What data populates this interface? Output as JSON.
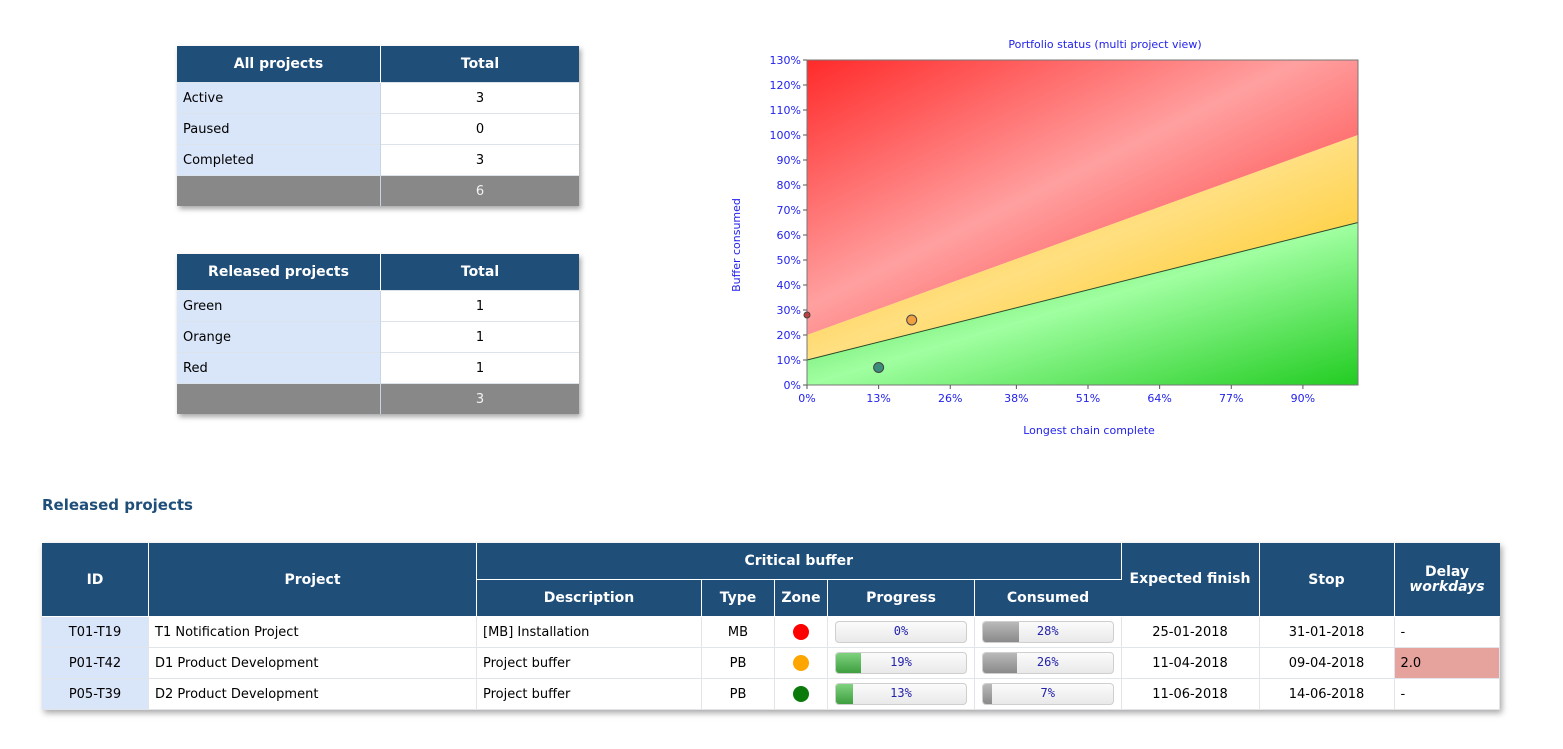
{
  "all_projects": {
    "header": [
      "All projects",
      "Total"
    ],
    "rows": [
      {
        "label": "Active",
        "value": "3"
      },
      {
        "label": "Paused",
        "value": "0"
      },
      {
        "label": "Completed",
        "value": "3"
      }
    ],
    "total": "6"
  },
  "released_summary": {
    "header": [
      "Released projects",
      "Total"
    ],
    "rows": [
      {
        "label": "Green",
        "value": "1"
      },
      {
        "label": "Orange",
        "value": "1"
      },
      {
        "label": "Red",
        "value": "1"
      }
    ],
    "total": "3"
  },
  "chart": {
    "title": "Portfolio status (multi project view)",
    "xlabel": "Longest chain complete",
    "ylabel": "Buffer consumed",
    "x_ticks": [
      "0%",
      "13%",
      "26%",
      "38%",
      "51%",
      "64%",
      "77%",
      "90%"
    ],
    "y_ticks": [
      "0%",
      "10%",
      "20%",
      "30%",
      "40%",
      "50%",
      "60%",
      "70%",
      "80%",
      "90%",
      "100%",
      "110%",
      "120%",
      "130%"
    ],
    "colors": {
      "red": "#ff2020",
      "orange": "#ffc020",
      "green": "#22c022"
    }
  },
  "chart_data": {
    "type": "scatter",
    "title": "Portfolio status (multi project view)",
    "xlabel": "Longest chain complete",
    "ylabel": "Buffer consumed",
    "xlim": [
      0,
      100
    ],
    "ylim": [
      0,
      130
    ],
    "zone_lines": [
      {
        "name": "green-orange",
        "x": [
          0,
          100
        ],
        "y": [
          10,
          65
        ]
      },
      {
        "name": "orange-red",
        "x": [
          0,
          100
        ],
        "y": [
          20,
          100
        ]
      }
    ],
    "points": [
      {
        "x": 0,
        "y": 28,
        "zone": "red"
      },
      {
        "x": 19,
        "y": 26,
        "zone": "orange"
      },
      {
        "x": 13,
        "y": 7,
        "zone": "green"
      }
    ]
  },
  "released": {
    "title": "Released projects",
    "headers": {
      "id": "ID",
      "project": "Project",
      "critical_buffer": "Critical buffer",
      "description": "Description",
      "type": "Type",
      "zone": "Zone",
      "progress": "Progress",
      "consumed": "Consumed",
      "expected": "Expected finish",
      "stop": "Stop",
      "delay": "Delay",
      "delay_unit": "workdays"
    },
    "rows": [
      {
        "id": "T01-T19",
        "project": "T1 Notification Project",
        "description": "[MB] Installation",
        "type": "MB",
        "zone_color": "#ff0000",
        "progress": "0%",
        "progress_value": 0,
        "consumed": "28%",
        "consumed_value": 28,
        "expected": "25-01-2018",
        "stop": "31-01-2018",
        "delay": "-"
      },
      {
        "id": "P01-T42",
        "project": "D1 Product Development",
        "description": "Project buffer",
        "type": "PB",
        "zone_color": "#ffa500",
        "progress": "19%",
        "progress_value": 19,
        "consumed": "26%",
        "consumed_value": 26,
        "expected": "11-04-2018",
        "stop": "09-04-2018",
        "delay": "2.0"
      },
      {
        "id": "P05-T39",
        "project": "D2 Product Development",
        "description": "Project buffer",
        "type": "PB",
        "zone_color": "#0a7a0a",
        "progress": "13%",
        "progress_value": 13,
        "consumed": "7%",
        "consumed_value": 7,
        "expected": "11-06-2018",
        "stop": "14-06-2018",
        "delay": "-"
      }
    ]
  }
}
